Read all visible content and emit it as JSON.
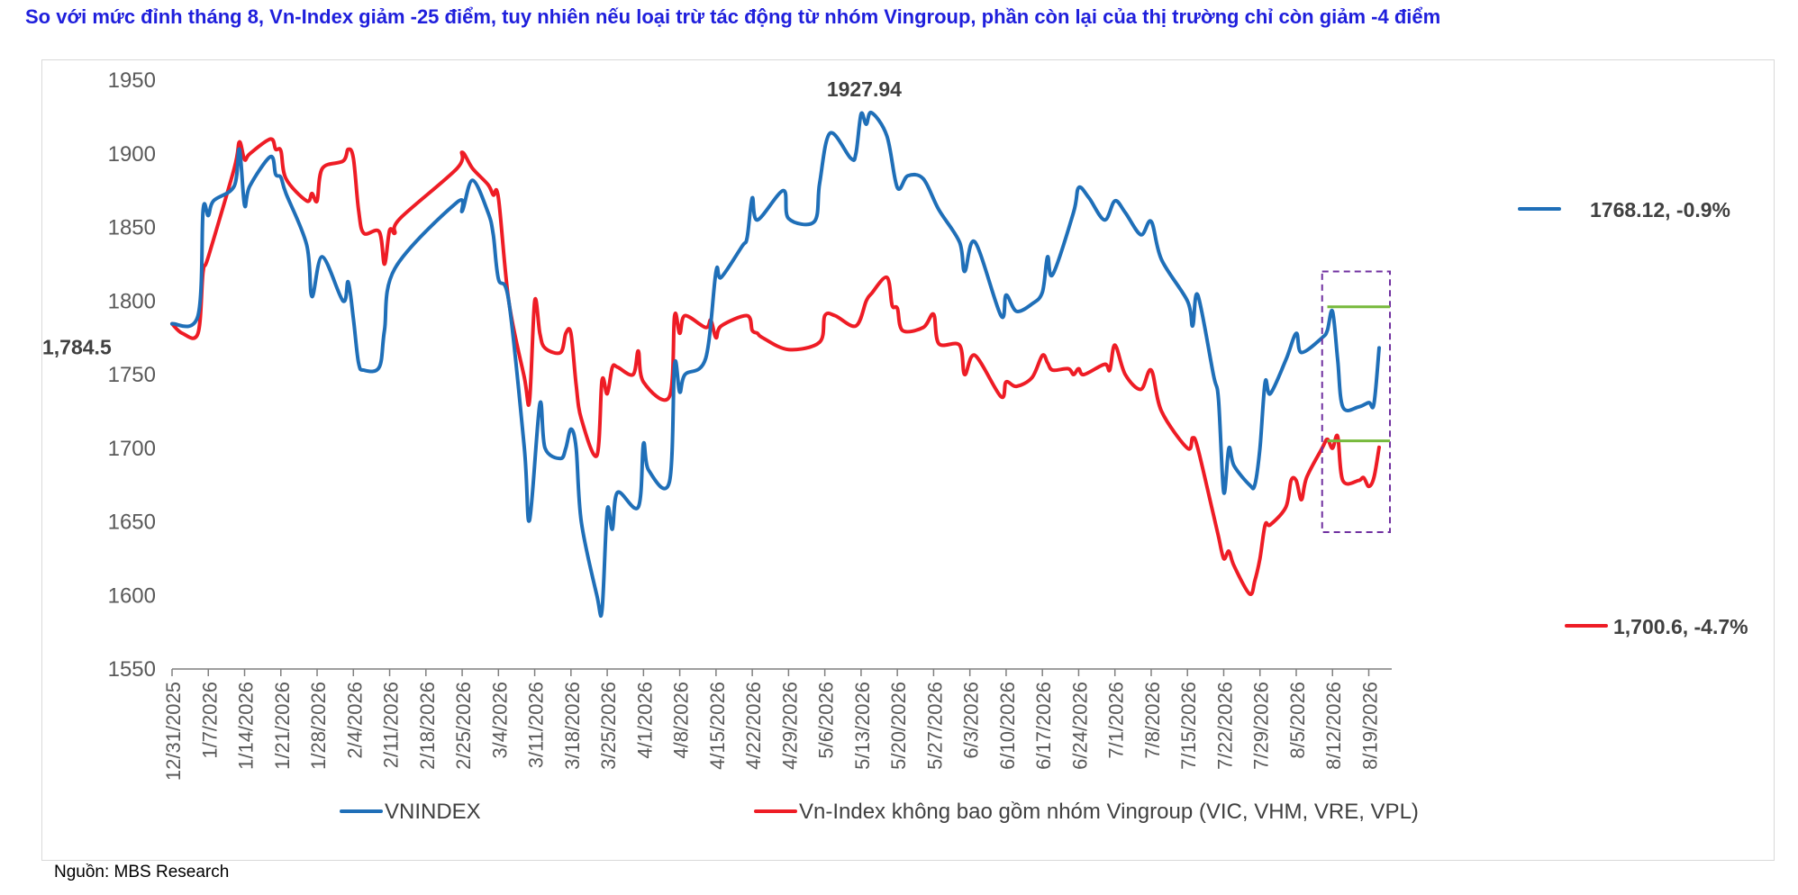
{
  "title": "So với mức đỉnh tháng 8, Vn-Index giảm -25 điểm, tuy nhiên nếu loại trừ tác động từ nhóm Vingroup, phần còn lại của thị trường chỉ còn giảm -4 điểm",
  "source": "Nguồn: MBS Research",
  "colors": {
    "vnindex": "#1f6fb8",
    "ex_vingroup": "#ee1c25",
    "title": "#1f1fdc",
    "reference_lines": "#77b93c",
    "highlight_box": "#7030a0"
  },
  "chart_data": {
    "type": "line",
    "ylim": [
      1550,
      1950
    ],
    "yticks": [
      1550,
      1600,
      1650,
      1700,
      1750,
      1800,
      1850,
      1900,
      1950
    ],
    "grid": false,
    "legend_position": "bottom",
    "date_range": [
      "12/31/2025",
      "8/21/2026"
    ],
    "x_tick_labels": [
      "12/31/2025",
      "1/7/2026",
      "1/14/2026",
      "1/21/2026",
      "1/28/2026",
      "2/4/2026",
      "2/11/2026",
      "2/18/2026",
      "2/25/2026",
      "3/4/2026",
      "3/11/2026",
      "3/18/2026",
      "3/25/2026",
      "4/1/2026",
      "4/8/2026",
      "4/15/2026",
      "4/22/2026",
      "4/29/2026",
      "5/6/2026",
      "5/13/2026",
      "5/20/2026",
      "5/27/2026",
      "6/3/2026",
      "6/10/2026",
      "6/17/2026",
      "6/24/2026",
      "7/1/2026",
      "7/8/2026",
      "7/15/2026",
      "7/22/2026",
      "7/29/2026",
      "8/5/2026",
      "8/12/2026",
      "8/19/2026"
    ],
    "series": [
      {
        "name": "VNINDEX",
        "points": [
          [
            "12/31/2025",
            1784.5
          ],
          [
            "1/5/2026",
            1790
          ],
          [
            "1/6/2026",
            1862
          ],
          [
            "1/7/2026",
            1858
          ],
          [
            "1/8/2026",
            1868
          ],
          [
            "1/12/2026",
            1878
          ],
          [
            "1/13/2026",
            1903
          ],
          [
            "1/14/2026",
            1865
          ],
          [
            "1/15/2026",
            1878
          ],
          [
            "1/19/2026",
            1898
          ],
          [
            "1/20/2026",
            1886
          ],
          [
            "1/21/2026",
            1884
          ],
          [
            "1/22/2026",
            1873
          ],
          [
            "1/26/2026",
            1838
          ],
          [
            "1/27/2026",
            1803
          ],
          [
            "1/29/2026",
            1830
          ],
          [
            "2/2/2026",
            1800
          ],
          [
            "2/3/2026",
            1813
          ],
          [
            "2/4/2026",
            1788
          ],
          [
            "2/5/2026",
            1758
          ],
          [
            "2/6/2026",
            1753
          ],
          [
            "2/9/2026",
            1755
          ],
          [
            "2/10/2026",
            1780
          ],
          [
            "2/12/2026",
            1822
          ],
          [
            "2/24/2026",
            1867
          ],
          [
            "2/25/2026",
            1861
          ],
          [
            "2/27/2026",
            1882
          ],
          [
            "3/2/2026",
            1860
          ],
          [
            "3/3/2026",
            1845
          ],
          [
            "3/4/2026",
            1815
          ],
          [
            "3/6/2026",
            1800
          ],
          [
            "3/9/2026",
            1700
          ],
          [
            "3/10/2026",
            1651
          ],
          [
            "3/12/2026",
            1730
          ],
          [
            "3/13/2026",
            1700
          ],
          [
            "3/16/2026",
            1693
          ],
          [
            "3/17/2026",
            1700
          ],
          [
            "3/18/2026",
            1713
          ],
          [
            "3/19/2026",
            1700
          ],
          [
            "3/20/2026",
            1650
          ],
          [
            "3/23/2026",
            1600
          ],
          [
            "3/24/2026",
            1590
          ],
          [
            "3/25/2026",
            1658
          ],
          [
            "3/26/2026",
            1645
          ],
          [
            "3/27/2026",
            1670
          ],
          [
            "3/31/2026",
            1660
          ],
          [
            "4/1/2026",
            1703
          ],
          [
            "4/2/2026",
            1685
          ],
          [
            "4/6/2026",
            1677
          ],
          [
            "4/7/2026",
            1757
          ],
          [
            "4/8/2026",
            1738
          ],
          [
            "4/9/2026",
            1750
          ],
          [
            "4/13/2026",
            1761
          ],
          [
            "4/15/2026",
            1820
          ],
          [
            "4/16/2026",
            1816
          ],
          [
            "4/20/2026",
            1837
          ],
          [
            "4/21/2026",
            1843
          ],
          [
            "4/22/2026",
            1870
          ],
          [
            "4/23/2026",
            1855
          ],
          [
            "4/28/2026",
            1875
          ],
          [
            "4/29/2026",
            1856
          ],
          [
            "5/4/2026",
            1854
          ],
          [
            "5/5/2026",
            1880
          ],
          [
            "5/7/2026",
            1914
          ],
          [
            "5/11/2026",
            1897
          ],
          [
            "5/12/2026",
            1900
          ],
          [
            "5/13/2026",
            1927
          ],
          [
            "5/14/2026",
            1920
          ],
          [
            "5/15/2026",
            1927.94
          ],
          [
            "5/18/2026",
            1912
          ],
          [
            "5/20/2026",
            1877
          ],
          [
            "5/22/2026",
            1885
          ],
          [
            "5/25/2026",
            1883
          ],
          [
            "5/28/2026",
            1862
          ],
          [
            "6/1/2026",
            1840
          ],
          [
            "6/2/2026",
            1820
          ],
          [
            "6/4/2026",
            1840
          ],
          [
            "6/9/2026",
            1790
          ],
          [
            "6/10/2026",
            1804
          ],
          [
            "6/12/2026",
            1793
          ],
          [
            "6/15/2026",
            1798
          ],
          [
            "6/17/2026",
            1806
          ],
          [
            "6/18/2026",
            1830
          ],
          [
            "6/19/2026",
            1818
          ],
          [
            "6/23/2026",
            1860
          ],
          [
            "6/24/2026",
            1877
          ],
          [
            "6/26/2026",
            1870
          ],
          [
            "6/29/2026",
            1855
          ],
          [
            "7/1/2026",
            1868
          ],
          [
            "7/3/2026",
            1860
          ],
          [
            "7/6/2026",
            1845
          ],
          [
            "7/8/2026",
            1854
          ],
          [
            "7/10/2026",
            1828
          ],
          [
            "7/15/2026",
            1800
          ],
          [
            "7/16/2026",
            1783
          ],
          [
            "7/17/2026",
            1804
          ],
          [
            "7/20/2026",
            1750
          ],
          [
            "7/21/2026",
            1733
          ],
          [
            "7/22/2026",
            1670
          ],
          [
            "7/23/2026",
            1700
          ],
          [
            "7/24/2026",
            1688
          ],
          [
            "7/27/2026",
            1675
          ],
          [
            "7/28/2026",
            1675
          ],
          [
            "7/29/2026",
            1700
          ],
          [
            "7/30/2026",
            1745
          ],
          [
            "7/31/2026",
            1737
          ],
          [
            "8/3/2026",
            1760
          ],
          [
            "8/5/2026",
            1778
          ],
          [
            "8/6/2026",
            1765
          ],
          [
            "8/10/2026",
            1775
          ],
          [
            "8/11/2026",
            1780
          ],
          [
            "8/12/2026",
            1793
          ],
          [
            "8/13/2026",
            1760
          ],
          [
            "8/14/2026",
            1728
          ],
          [
            "8/17/2026",
            1728
          ],
          [
            "8/19/2026",
            1731
          ],
          [
            "8/20/2026",
            1730
          ],
          [
            "8/21/2026",
            1768.12
          ]
        ],
        "end_label": "1768.12, -0.9%"
      },
      {
        "name": "Vn-Index không bao gồm nhóm Vingroup (VIC, VHM, VRE, VPL)",
        "points": [
          [
            "12/31/2025",
            1784.5
          ],
          [
            "1/2/2026",
            1778
          ],
          [
            "1/5/2026",
            1778
          ],
          [
            "1/6/2026",
            1820
          ],
          [
            "1/7/2026",
            1830
          ],
          [
            "1/12/2026",
            1890
          ],
          [
            "1/13/2026",
            1908
          ],
          [
            "1/14/2026",
            1896
          ],
          [
            "1/15/2026",
            1900
          ],
          [
            "1/19/2026",
            1910
          ],
          [
            "1/20/2026",
            1903
          ],
          [
            "1/21/2026",
            1902
          ],
          [
            "1/22/2026",
            1883
          ],
          [
            "1/26/2026",
            1868
          ],
          [
            "1/27/2026",
            1873
          ],
          [
            "1/28/2026",
            1868
          ],
          [
            "1/29/2026",
            1890
          ],
          [
            "2/2/2026",
            1895
          ],
          [
            "2/3/2026",
            1903
          ],
          [
            "2/4/2026",
            1897
          ],
          [
            "2/5/2026",
            1862
          ],
          [
            "2/6/2026",
            1846
          ],
          [
            "2/9/2026",
            1847
          ],
          [
            "2/10/2026",
            1825
          ],
          [
            "2/11/2026",
            1848
          ],
          [
            "2/12/2026",
            1846
          ],
          [
            "2/13/2026",
            1856
          ],
          [
            "2/24/2026",
            1890
          ],
          [
            "2/25/2026",
            1901
          ],
          [
            "2/27/2026",
            1890
          ],
          [
            "3/2/2026",
            1879
          ],
          [
            "3/3/2026",
            1872
          ],
          [
            "3/4/2026",
            1870
          ],
          [
            "3/6/2026",
            1800
          ],
          [
            "3/9/2026",
            1748
          ],
          [
            "3/10/2026",
            1732
          ],
          [
            "3/11/2026",
            1800
          ],
          [
            "3/12/2026",
            1778
          ],
          [
            "3/13/2026",
            1768
          ],
          [
            "3/16/2026",
            1765
          ],
          [
            "3/17/2026",
            1778
          ],
          [
            "3/18/2026",
            1778
          ],
          [
            "3/19/2026",
            1743
          ],
          [
            "3/20/2026",
            1720
          ],
          [
            "3/23/2026",
            1695
          ],
          [
            "3/24/2026",
            1746
          ],
          [
            "3/25/2026",
            1737
          ],
          [
            "3/26/2026",
            1755
          ],
          [
            "3/27/2026",
            1755
          ],
          [
            "3/30/2026",
            1750
          ],
          [
            "3/31/2026",
            1766
          ],
          [
            "4/1/2026",
            1745
          ],
          [
            "4/6/2026",
            1735
          ],
          [
            "4/7/2026",
            1790
          ],
          [
            "4/8/2026",
            1778
          ],
          [
            "4/9/2026",
            1790
          ],
          [
            "4/13/2026",
            1782
          ],
          [
            "4/14/2026",
            1787
          ],
          [
            "4/15/2026",
            1775
          ],
          [
            "4/16/2026",
            1783
          ],
          [
            "4/21/2026",
            1790
          ],
          [
            "4/22/2026",
            1780
          ],
          [
            "4/23/2026",
            1778
          ],
          [
            "4/24/2026",
            1775
          ],
          [
            "4/29/2026",
            1767
          ],
          [
            "5/5/2026",
            1772
          ],
          [
            "5/6/2026",
            1790
          ],
          [
            "5/8/2026",
            1790
          ],
          [
            "5/12/2026",
            1783
          ],
          [
            "5/14/2026",
            1800
          ],
          [
            "5/15/2026",
            1805
          ],
          [
            "5/18/2026",
            1816
          ],
          [
            "5/19/2026",
            1797
          ],
          [
            "5/20/2026",
            1795
          ],
          [
            "5/21/2026",
            1780
          ],
          [
            "5/25/2026",
            1782
          ],
          [
            "5/27/2026",
            1791
          ],
          [
            "5/28/2026",
            1771
          ],
          [
            "6/1/2026",
            1770
          ],
          [
            "6/2/2026",
            1750
          ],
          [
            "6/4/2026",
            1763
          ],
          [
            "6/9/2026",
            1735
          ],
          [
            "6/10/2026",
            1745
          ],
          [
            "6/12/2026",
            1742
          ],
          [
            "6/15/2026",
            1748
          ],
          [
            "6/17/2026",
            1763
          ],
          [
            "6/18/2026",
            1758
          ],
          [
            "6/19/2026",
            1753
          ],
          [
            "6/22/2026",
            1754
          ],
          [
            "6/23/2026",
            1750
          ],
          [
            "6/24/2026",
            1754
          ],
          [
            "6/25/2026",
            1750
          ],
          [
            "6/29/2026",
            1757
          ],
          [
            "6/30/2026",
            1753
          ],
          [
            "7/1/2026",
            1770
          ],
          [
            "7/3/2026",
            1750
          ],
          [
            "7/6/2026",
            1740
          ],
          [
            "7/8/2026",
            1753
          ],
          [
            "7/10/2026",
            1725
          ],
          [
            "7/15/2026",
            1700
          ],
          [
            "7/16/2026",
            1707
          ],
          [
            "7/17/2026",
            1700
          ],
          [
            "7/20/2026",
            1655
          ],
          [
            "7/21/2026",
            1640
          ],
          [
            "7/22/2026",
            1625
          ],
          [
            "7/23/2026",
            1630
          ],
          [
            "7/24/2026",
            1620
          ],
          [
            "7/27/2026",
            1601
          ],
          [
            "7/28/2026",
            1610
          ],
          [
            "7/29/2026",
            1625
          ],
          [
            "7/30/2026",
            1648
          ],
          [
            "7/31/2026",
            1648
          ],
          [
            "8/3/2026",
            1660
          ],
          [
            "8/4/2026",
            1678
          ],
          [
            "8/5/2026",
            1678
          ],
          [
            "8/6/2026",
            1665
          ],
          [
            "8/7/2026",
            1680
          ],
          [
            "8/10/2026",
            1700
          ],
          [
            "8/11/2026",
            1706
          ],
          [
            "8/12/2026",
            1700
          ],
          [
            "8/13/2026",
            1708
          ],
          [
            "8/14/2026",
            1678
          ],
          [
            "8/17/2026",
            1678
          ],
          [
            "8/18/2026",
            1680
          ],
          [
            "8/19/2026",
            1674
          ],
          [
            "8/20/2026",
            1680
          ],
          [
            "8/21/2026",
            1700.6
          ]
        ],
        "end_label": "1,700.6, -4.7%"
      }
    ],
    "annotations": [
      {
        "text": "1927.94",
        "x": "5/15/2026",
        "y": 1927.94
      },
      {
        "text": "1,784.5",
        "x": "12/31/2025",
        "y": 1784.5
      }
    ],
    "reference_lines": [
      {
        "y": 1796,
        "from": "8/11/2026",
        "to": "8/21/2026"
      },
      {
        "y": 1705,
        "from": "8/11/2026",
        "to": "8/21/2026"
      }
    ],
    "highlight_box": {
      "from": "8/10/2026",
      "to": "8/21/2026",
      "y_top": 1820,
      "y_bottom": 1643
    }
  }
}
